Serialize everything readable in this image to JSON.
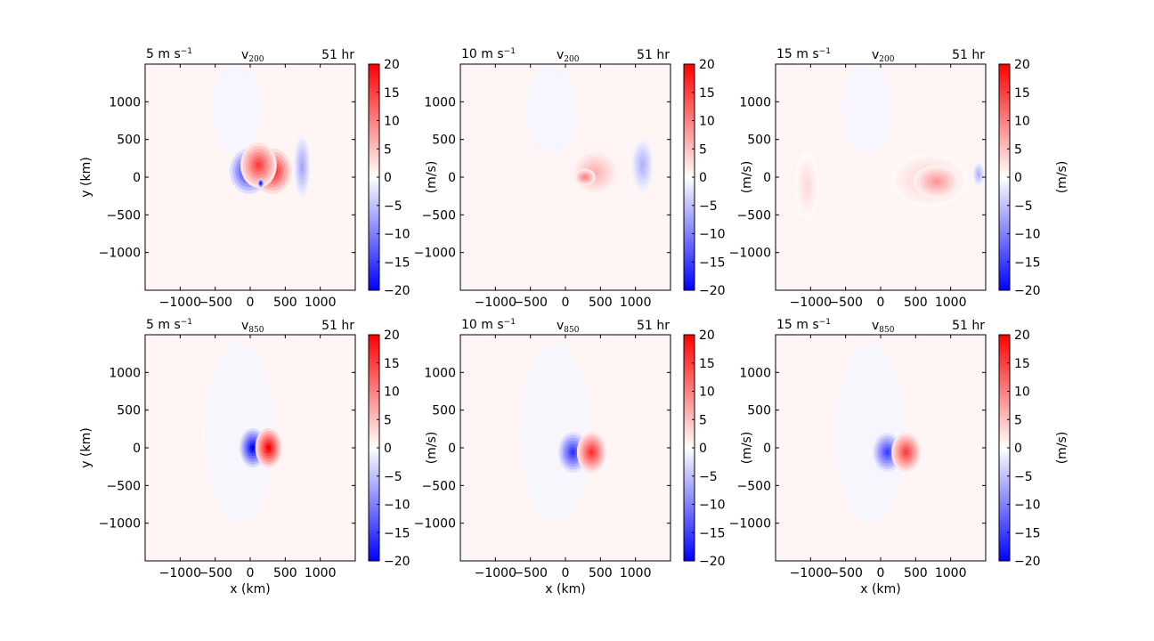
{
  "colors": {
    "pos": "#ff0000",
    "neg": "#0000ff",
    "mid": "#ffffff",
    "frame": "#000000"
  },
  "chart_data": {
    "type": "heatmap",
    "colormap": "bwr",
    "xlim": [
      -1500,
      1500
    ],
    "ylim": [
      -1500,
      1500
    ],
    "xticks": [
      -1000,
      -500,
      0,
      500,
      1000
    ],
    "yticks": [
      -1000,
      -500,
      0,
      500,
      1000
    ],
    "xtick_labels": [
      "−1000",
      "−500",
      "0",
      "500",
      "1000"
    ],
    "ytick_labels": [
      "−1000",
      "−500",
      "0",
      "500",
      "1000"
    ],
    "xlabel": "x (km)",
    "ylabel": "y (km)",
    "colorbar": {
      "label": "(m/s)",
      "range": [
        -20,
        20
      ],
      "ticks": [
        20,
        15,
        10,
        5,
        0,
        -5,
        -10,
        -15,
        -20
      ],
      "tick_labels": [
        "20",
        "15",
        "10",
        "5",
        "0",
        "−5",
        "−10",
        "−15",
        "−20"
      ]
    },
    "panels": [
      {
        "speed": "5 m s",
        "var": "v",
        "level": "200",
        "time": "51 hr",
        "field": "upper-dipole",
        "dipole": {
          "cx": 150,
          "cy": 80,
          "sep": 160,
          "rx": 280,
          "ry": 300,
          "amp": 18
        },
        "patches": [
          {
            "cx": 120,
            "cy": 160,
            "rx": 260,
            "ry": 300,
            "v": 15
          },
          {
            "cx": 740,
            "cy": 140,
            "rx": 120,
            "ry": 420,
            "v": -7
          },
          {
            "cx": 150,
            "cy": -80,
            "rx": 45,
            "ry": 60,
            "v": -20
          }
        ]
      },
      {
        "speed": "10 m s",
        "var": "v",
        "level": "200",
        "time": "51 hr",
        "field": "upper-shift",
        "patches": [
          {
            "cx": 420,
            "cy": 60,
            "rx": 340,
            "ry": 300,
            "v": 6
          },
          {
            "cx": 1100,
            "cy": 160,
            "rx": 160,
            "ry": 360,
            "v": -6
          },
          {
            "cx": 280,
            "cy": 0,
            "rx": 150,
            "ry": 110,
            "v": 10
          }
        ]
      },
      {
        "speed": "15 m s",
        "var": "v",
        "level": "200",
        "time": "51 hr",
        "field": "upper-shift",
        "patches": [
          {
            "cx": 700,
            "cy": -40,
            "rx": 560,
            "ry": 360,
            "v": 4
          },
          {
            "cx": 800,
            "cy": -60,
            "rx": 330,
            "ry": 220,
            "v": 8
          },
          {
            "cx": -1050,
            "cy": -120,
            "rx": 170,
            "ry": 440,
            "v": 3
          },
          {
            "cx": 1400,
            "cy": 40,
            "rx": 90,
            "ry": 160,
            "v": -6
          }
        ]
      },
      {
        "speed": "5 m s",
        "var": "v",
        "level": "850",
        "time": "51 hr",
        "field": "lower-dipole",
        "dipole": {
          "cx": 150,
          "cy": 0,
          "sep": 110,
          "rx": 190,
          "ry": 260,
          "amp": 20
        }
      },
      {
        "speed": "10 m s",
        "var": "v",
        "level": "850",
        "time": "51 hr",
        "field": "lower-dipole",
        "dipole": {
          "cx": 240,
          "cy": -60,
          "sep": 140,
          "rx": 210,
          "ry": 270,
          "amp": 16
        }
      },
      {
        "speed": "15 m s",
        "var": "v",
        "level": "850",
        "time": "51 hr",
        "field": "lower-dipole",
        "dipole": {
          "cx": 230,
          "cy": -60,
          "sep": 140,
          "rx": 210,
          "ry": 260,
          "amp": 15
        }
      }
    ]
  }
}
